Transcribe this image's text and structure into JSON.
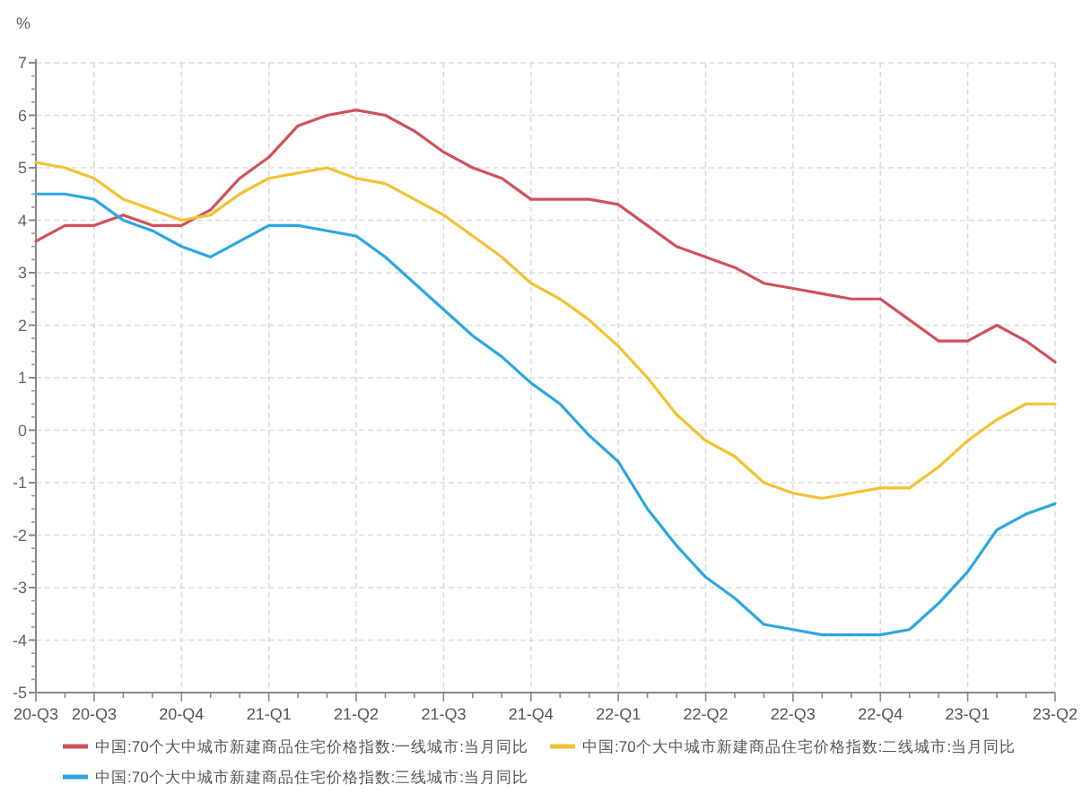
{
  "chart_data": {
    "type": "line",
    "ylabel": "%",
    "categories": [
      "20-Q3",
      null,
      "20-Q3",
      null,
      null,
      "20-Q4",
      null,
      null,
      "21-Q1",
      null,
      null,
      "21-Q2",
      null,
      null,
      "21-Q3",
      null,
      null,
      "21-Q4",
      null,
      null,
      "22-Q1",
      null,
      null,
      "22-Q2",
      null,
      null,
      "22-Q3",
      null,
      null,
      "22-Q4",
      null,
      null,
      "23-Q1",
      null,
      null,
      "23-Q2"
    ],
    "series": [
      {
        "name": "中国:70个大中城市新建商品住宅价格指数:一线城市:当月同比",
        "color": "#d0505a",
        "values": [
          3.6,
          3.9,
          3.9,
          4.1,
          3.9,
          3.9,
          4.2,
          4.8,
          5.2,
          5.8,
          6.0,
          6.1,
          6.0,
          5.7,
          5.3,
          5.0,
          4.8,
          4.4,
          4.4,
          4.4,
          4.3,
          3.9,
          3.5,
          3.3,
          3.1,
          2.8,
          2.7,
          2.6,
          2.5,
          2.5,
          2.1,
          1.7,
          1.7,
          2.0,
          1.7,
          1.3
        ]
      },
      {
        "name": "中国:70个大中城市新建商品住宅价格指数:二线城市:当月同比",
        "color": "#f2c230",
        "values": [
          5.1,
          5.0,
          4.8,
          4.4,
          4.2,
          4.0,
          4.1,
          4.5,
          4.8,
          4.9,
          5.0,
          4.8,
          4.7,
          4.4,
          4.1,
          3.7,
          3.3,
          2.8,
          2.5,
          2.1,
          1.6,
          1.0,
          0.3,
          -0.2,
          -0.5,
          -1.0,
          -1.2,
          -1.3,
          -1.2,
          -1.1,
          -1.1,
          -0.7,
          -0.2,
          0.2,
          0.5,
          0.5
        ]
      },
      {
        "name": "中国:70个大中城市新建商品住宅价格指数:三线城市:当月同比",
        "color": "#2aa7e0",
        "values": [
          4.5,
          4.5,
          4.4,
          4.0,
          3.8,
          3.5,
          3.3,
          3.6,
          3.9,
          3.9,
          3.8,
          3.7,
          3.3,
          2.8,
          2.3,
          1.8,
          1.4,
          0.9,
          0.5,
          -0.1,
          -0.6,
          -1.5,
          -2.2,
          -2.8,
          -3.2,
          -3.7,
          -3.8,
          -3.9,
          -3.9,
          -3.9,
          -3.8,
          -3.3,
          -2.7,
          -1.9,
          -1.6,
          -1.4
        ]
      }
    ],
    "ylim": [
      -5,
      7
    ],
    "yticks": [
      -5,
      -4,
      -3,
      -2,
      -1,
      0,
      1,
      2,
      3,
      4,
      5,
      6,
      7
    ],
    "grid": true,
    "legend": "bottom",
    "marker": "none",
    "line_style": "solid"
  }
}
